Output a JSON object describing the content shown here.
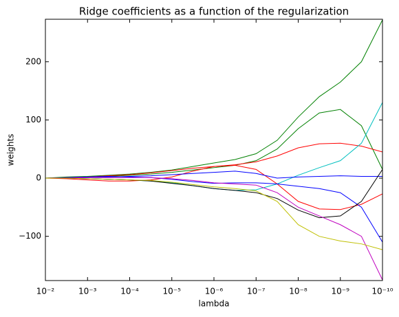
{
  "chart_data": {
    "type": "line",
    "title": "Ridge coefficients as a function of the regularization",
    "x_label": "lambda",
    "y_label": "weights",
    "xscale": "log",
    "x": [
      0.01,
      0.00316,
      0.001,
      0.000316,
      0.0001,
      3.16e-05,
      1e-05,
      3.16e-06,
      1e-06,
      3.16e-07,
      1e-07,
      3.16e-08,
      1e-08,
      3.16e-09,
      1e-09,
      3.16e-10,
      1e-10
    ],
    "xlim": [
      0.01,
      1e-10
    ],
    "xticks": [
      {
        "value": 0.01,
        "label": "10⁻²"
      },
      {
        "value": 0.001,
        "label": "10⁻³"
      },
      {
        "value": 0.0001,
        "label": "10⁻⁴"
      },
      {
        "value": 1e-05,
        "label": "10⁻⁵"
      },
      {
        "value": 1e-06,
        "label": "10⁻⁶"
      },
      {
        "value": 1e-07,
        "label": "10⁻⁷"
      },
      {
        "value": 1e-08,
        "label": "10⁻⁸"
      },
      {
        "value": 1e-09,
        "label": "10⁻⁹"
      },
      {
        "value": 1e-10,
        "label": "10⁻¹⁰"
      }
    ],
    "ylim": [
      -176,
      273
    ],
    "yticks": [
      {
        "value": -100,
        "label": "−100"
      },
      0,
      100,
      200
    ],
    "grid": false,
    "series": [
      {
        "color": "#008000",
        "values": [
          0,
          2,
          3,
          5,
          7,
          10,
          14,
          20,
          26,
          32,
          42,
          65,
          105,
          140,
          165,
          200,
          272
        ]
      },
      {
        "color": "#008000",
        "values": [
          0,
          1,
          2,
          3,
          5,
          7,
          10,
          14,
          18,
          22,
          30,
          50,
          85,
          112,
          118,
          90,
          15
        ]
      },
      {
        "color": "#ff0000",
        "values": [
          0,
          1,
          2,
          4,
          6,
          9,
          13,
          17,
          20,
          23,
          28,
          38,
          52,
          59,
          60,
          55,
          45
        ]
      },
      {
        "color": "#00bfbf",
        "values": [
          0,
          0,
          -1,
          -2,
          -3,
          -5,
          -8,
          -13,
          -18,
          -21,
          -20,
          -10,
          5,
          18,
          30,
          60,
          130
        ]
      },
      {
        "color": "#ff0000",
        "values": [
          0,
          -1,
          -3,
          -5,
          -5,
          -3,
          2,
          12,
          20,
          22,
          15,
          -10,
          -40,
          -53,
          -54,
          -45,
          -27
        ]
      },
      {
        "color": "#0000ff",
        "values": [
          0,
          1,
          2,
          3,
          2,
          1,
          -2,
          -6,
          -9,
          -8,
          -8,
          -10,
          -14,
          -18,
          -25,
          -50,
          -110
        ]
      },
      {
        "color": "#0000ff",
        "values": [
          0,
          0,
          1,
          2,
          3,
          4,
          6,
          8,
          10,
          12,
          8,
          0,
          2,
          3,
          4,
          3,
          3
        ]
      },
      {
        "color": "#000000",
        "values": [
          0,
          0,
          -1,
          -2,
          -3,
          -5,
          -9,
          -13,
          -18,
          -21,
          -25,
          -35,
          -55,
          -68,
          -65,
          -40,
          15
        ]
      },
      {
        "color": "#bf00bf",
        "values": [
          0,
          0,
          1,
          1,
          1,
          1,
          -1,
          -4,
          -8,
          -10,
          -12,
          -25,
          -50,
          -65,
          -80,
          -100,
          -175
        ]
      },
      {
        "color": "#bfbf00",
        "values": [
          0,
          0,
          -1,
          -2,
          -3,
          -4,
          -7,
          -11,
          -15,
          -18,
          -22,
          -40,
          -80,
          -100,
          -108,
          -113,
          -123
        ]
      }
    ]
  }
}
